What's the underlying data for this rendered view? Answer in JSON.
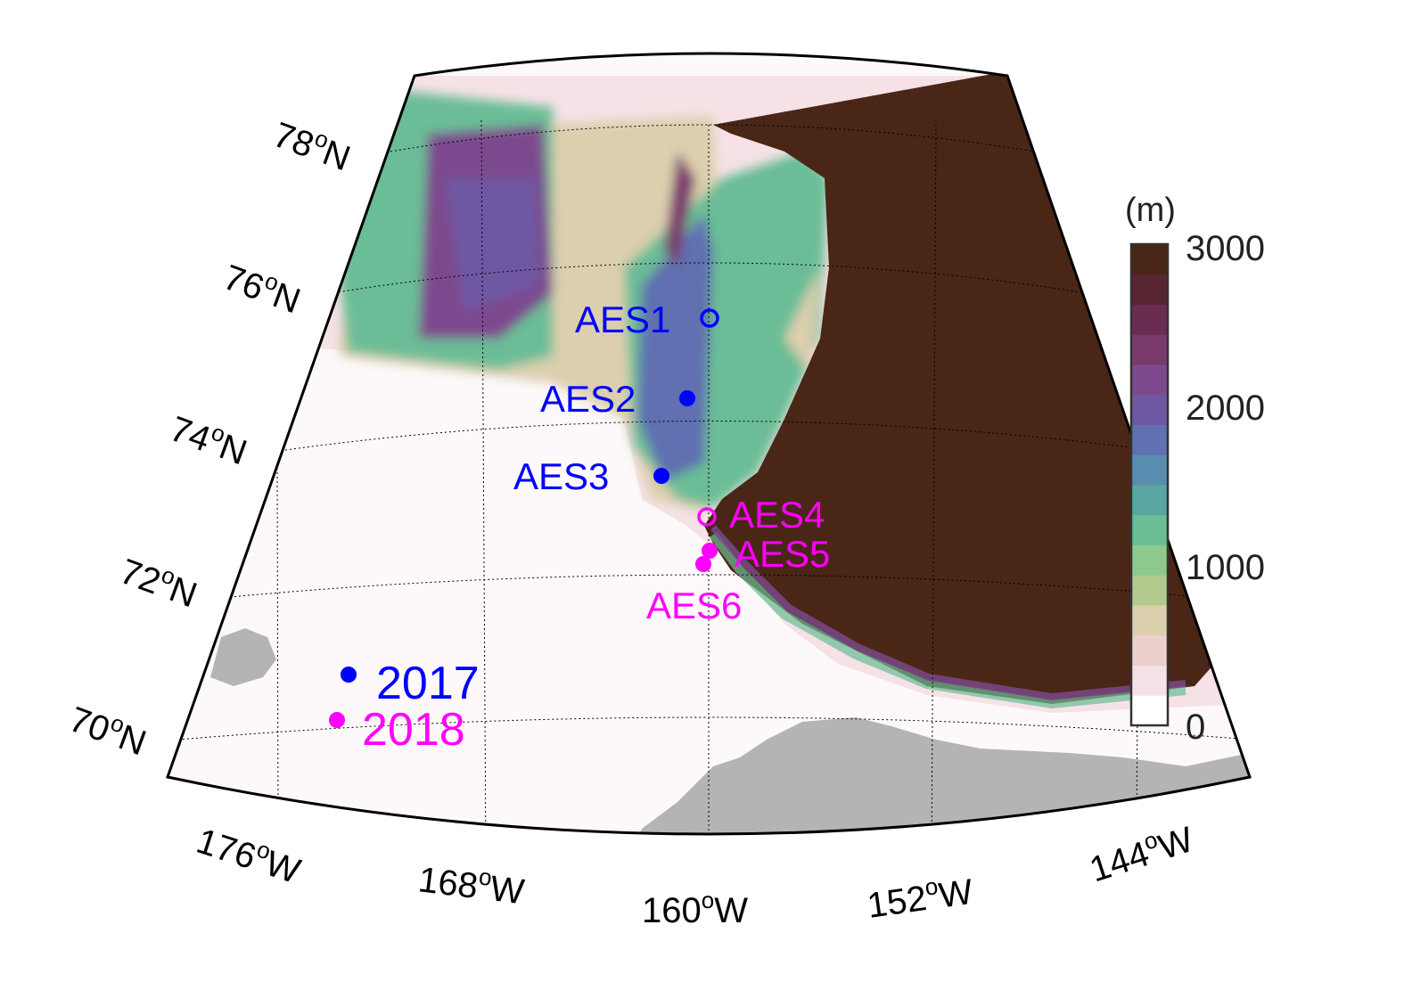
{
  "map": {
    "lat_labels": [
      {
        "deg": "78",
        "hem": "N"
      },
      {
        "deg": "76",
        "hem": "N"
      },
      {
        "deg": "74",
        "hem": "N"
      },
      {
        "deg": "72",
        "hem": "N"
      },
      {
        "deg": "70",
        "hem": "N"
      }
    ],
    "lon_labels": [
      {
        "deg": "176",
        "hem": "W"
      },
      {
        "deg": "168",
        "hem": "W"
      },
      {
        "deg": "160",
        "hem": "W"
      },
      {
        "deg": "152",
        "hem": "W"
      },
      {
        "deg": "144",
        "hem": "W"
      }
    ],
    "deg_symbol": "o",
    "moorings": [
      {
        "label": "AES1",
        "marker": "open",
        "year": "2017"
      },
      {
        "label": "AES2",
        "marker": "filled",
        "year": "2017"
      },
      {
        "label": "AES3",
        "marker": "filled",
        "year": "2017"
      },
      {
        "label": "AES4",
        "marker": "open",
        "year": "2018"
      },
      {
        "label": "AES5",
        "marker": "filled",
        "year": "2018"
      },
      {
        "label": "AES6",
        "marker": "filled",
        "year": "2018"
      }
    ],
    "legend": [
      {
        "label": "2017",
        "color": "#0000ff"
      },
      {
        "label": "2018",
        "color": "#ff00ff"
      }
    ],
    "colorbar": {
      "unit": "(m)",
      "ticks": [
        "3000",
        "2000",
        "1000",
        "0"
      ],
      "colors": [
        "#ffffff",
        "#f6e2e6",
        "#ecd0cc",
        "#dccfae",
        "#b4c98e",
        "#8dc98c",
        "#6bbd96",
        "#5aa6a3",
        "#5a8eb0",
        "#6070b0",
        "#6e58a3",
        "#7d4a8e",
        "#7a3b6c",
        "#6a2c50",
        "#582533",
        "#4a2617"
      ]
    },
    "colors": {
      "land": "#b4b4b4",
      "deep": "#4a2617",
      "blue": "#0000ff",
      "magenta": "#ff00ff"
    }
  }
}
